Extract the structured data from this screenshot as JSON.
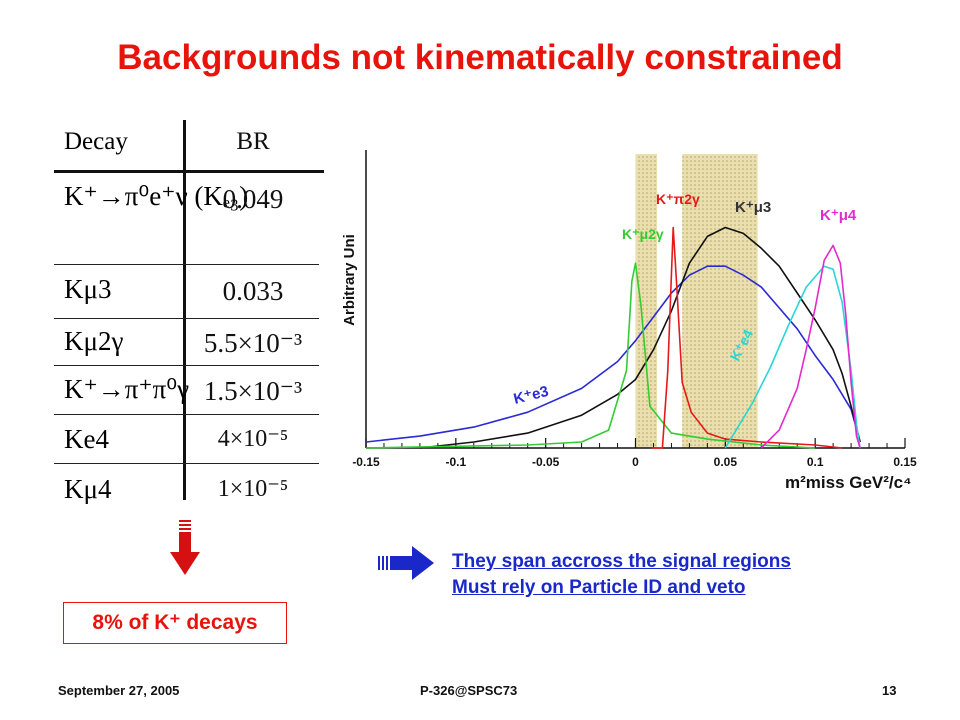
{
  "title": "Backgrounds not kinematically constrained",
  "table": {
    "col_decay": "Decay",
    "col_br": "BR",
    "rows": [
      {
        "decay": "K⁺→π⁰e⁺ν (Kₑ₃)",
        "br": "0.049"
      },
      {
        "decay": "Kμ3",
        "br": "0.033"
      },
      {
        "decay": "Kμ2γ",
        "br": "5.5×10⁻³"
      },
      {
        "decay": "K⁺→π⁺π⁰γ",
        "br": "1.5×10⁻³"
      },
      {
        "decay": "Ke4",
        "br": "4×10⁻⁵"
      },
      {
        "decay": "Kμ4",
        "br": "1×10⁻⁵"
      }
    ]
  },
  "fraction_box": "8% of K⁺ decays",
  "conclusion": {
    "line1": "They span accross the signal regions",
    "line2": "Must rely on Particle ID and veto"
  },
  "chart_data": {
    "type": "line",
    "title": "",
    "xlabel": "m²miss GeV²/c⁴",
    "ylabel": "Arbitrary Uni",
    "xlim": [
      -0.15,
      0.15
    ],
    "x_ticks": [
      "-0.15",
      "-0.1",
      "-0.05",
      "0",
      "0.05",
      "0.1",
      "0.15"
    ],
    "signal_regions": [
      [
        0.0,
        0.012
      ],
      [
        0.026,
        0.068
      ]
    ],
    "series": [
      {
        "name": "K⁺e3",
        "color": "#2a2ad6",
        "points": [
          [
            -0.15,
            0.02
          ],
          [
            -0.12,
            0.04
          ],
          [
            -0.09,
            0.07
          ],
          [
            -0.06,
            0.12
          ],
          [
            -0.03,
            0.2
          ],
          [
            -0.01,
            0.29
          ],
          [
            0.0,
            0.36
          ],
          [
            0.01,
            0.44
          ],
          [
            0.02,
            0.52
          ],
          [
            0.03,
            0.58
          ],
          [
            0.04,
            0.61
          ],
          [
            0.05,
            0.61
          ],
          [
            0.06,
            0.58
          ],
          [
            0.07,
            0.54
          ],
          [
            0.08,
            0.47
          ],
          [
            0.09,
            0.4
          ],
          [
            0.1,
            0.31
          ],
          [
            0.11,
            0.23
          ],
          [
            0.12,
            0.13
          ],
          [
            0.125,
            0.02
          ]
        ]
      },
      {
        "name": "K⁺μ3",
        "color": "#111111",
        "points": [
          [
            -0.12,
            0.0
          ],
          [
            -0.09,
            0.02
          ],
          [
            -0.06,
            0.05
          ],
          [
            -0.03,
            0.11
          ],
          [
            -0.01,
            0.18
          ],
          [
            0.0,
            0.23
          ],
          [
            0.01,
            0.33
          ],
          [
            0.02,
            0.46
          ],
          [
            0.03,
            0.62
          ],
          [
            0.04,
            0.71
          ],
          [
            0.05,
            0.74
          ],
          [
            0.06,
            0.72
          ],
          [
            0.07,
            0.67
          ],
          [
            0.08,
            0.61
          ],
          [
            0.09,
            0.52
          ],
          [
            0.1,
            0.43
          ],
          [
            0.11,
            0.33
          ],
          [
            0.115,
            0.25
          ],
          [
            0.12,
            0.14
          ],
          [
            0.125,
            0.02
          ]
        ]
      },
      {
        "name": "K⁺μ2γ",
        "color": "#33cc33",
        "points": [
          [
            -0.15,
            0.0
          ],
          [
            -0.06,
            0.01
          ],
          [
            -0.03,
            0.02
          ],
          [
            -0.015,
            0.06
          ],
          [
            -0.005,
            0.26
          ],
          [
            -0.002,
            0.56
          ],
          [
            0.0,
            0.62
          ],
          [
            0.003,
            0.48
          ],
          [
            0.008,
            0.14
          ],
          [
            0.02,
            0.05
          ],
          [
            0.04,
            0.03
          ],
          [
            0.07,
            0.01
          ],
          [
            0.1,
            0.0
          ]
        ]
      },
      {
        "name": "K⁺π2γ",
        "color": "#e81818",
        "points": [
          [
            0.009,
            0.0
          ],
          [
            0.015,
            0.0
          ],
          [
            0.018,
            0.26
          ],
          [
            0.021,
            0.74
          ],
          [
            0.023,
            0.54
          ],
          [
            0.026,
            0.22
          ],
          [
            0.031,
            0.12
          ],
          [
            0.04,
            0.05
          ],
          [
            0.05,
            0.03
          ],
          [
            0.07,
            0.02
          ],
          [
            0.1,
            0.01
          ],
          [
            0.115,
            0.0
          ]
        ]
      },
      {
        "name": "K⁺e4",
        "color": "#27d6d6",
        "points": [
          [
            0.05,
            0.0
          ],
          [
            0.055,
            0.05
          ],
          [
            0.065,
            0.15
          ],
          [
            0.075,
            0.27
          ],
          [
            0.085,
            0.41
          ],
          [
            0.095,
            0.54
          ],
          [
            0.105,
            0.61
          ],
          [
            0.11,
            0.6
          ],
          [
            0.115,
            0.49
          ],
          [
            0.12,
            0.26
          ],
          [
            0.123,
            0.08
          ],
          [
            0.125,
            0.0
          ]
        ]
      },
      {
        "name": "K⁺μ4",
        "color": "#e22ad0",
        "points": [
          [
            0.07,
            0.0
          ],
          [
            0.08,
            0.06
          ],
          [
            0.09,
            0.2
          ],
          [
            0.095,
            0.33
          ],
          [
            0.1,
            0.47
          ],
          [
            0.105,
            0.63
          ],
          [
            0.11,
            0.68
          ],
          [
            0.114,
            0.62
          ],
          [
            0.117,
            0.45
          ],
          [
            0.12,
            0.22
          ],
          [
            0.123,
            0.04
          ],
          [
            0.125,
            0.0
          ]
        ]
      }
    ]
  },
  "footer": {
    "date": "September 27, 2005",
    "talk": "P-326@SPSC73",
    "page": "13"
  }
}
